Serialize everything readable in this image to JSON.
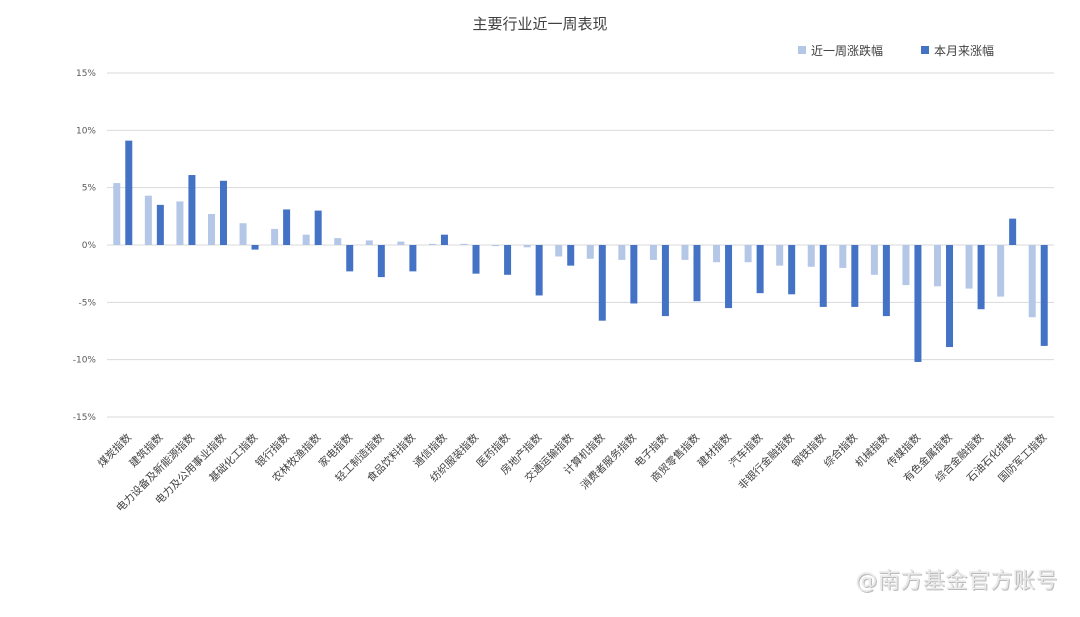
{
  "watermark": "@南方基金官方账号",
  "chart_data": {
    "type": "bar",
    "title": "主要行业近一周表现",
    "xlabel": "",
    "ylabel": "",
    "ylim": [
      -15,
      15
    ],
    "yticks": [
      15,
      10,
      5,
      0,
      -5,
      -10,
      -15
    ],
    "ytick_labels": [
      "15%",
      "10%",
      "5%",
      "0%",
      "-5%",
      "-10%",
      "-15%"
    ],
    "grid": true,
    "legend_position": "top-right",
    "categories": [
      "煤炭指数",
      "建筑指数",
      "电力设备及新能源指数",
      "电力及公用事业指数",
      "基础化工指数",
      "银行指数",
      "农林牧渔指数",
      "家电指数",
      "轻工制造指数",
      "食品饮料指数",
      "通信指数",
      "纺织服装指数",
      "医药指数",
      "房地产指数",
      "交通运输指数",
      "计算机指数",
      "消费者服务指数",
      "电子指数",
      "商贸零售指数",
      "建材指数",
      "汽车指数",
      "非银行金融指数",
      "钢铁指数",
      "综合指数",
      "机械指数",
      "传媒指数",
      "有色金属指数",
      "综合金融指数",
      "石油石化指数",
      "国防军工指数"
    ],
    "series": [
      {
        "name": "近一周涨跌幅",
        "color": "#b4c7e7",
        "values": [
          5.4,
          4.3,
          3.8,
          2.7,
          1.9,
          1.4,
          0.9,
          0.6,
          0.4,
          0.3,
          0.1,
          0.1,
          -0.1,
          -0.2,
          -1.0,
          -1.2,
          -1.3,
          -1.3,
          -1.3,
          -1.5,
          -1.5,
          -1.8,
          -1.9,
          -2.0,
          -2.6,
          -3.5,
          -3.6,
          -3.8,
          -4.5,
          -6.3
        ]
      },
      {
        "name": "本月来涨幅",
        "color": "#4472c4",
        "values": [
          9.1,
          3.5,
          6.1,
          5.6,
          -0.4,
          3.1,
          3.0,
          -2.3,
          -2.8,
          -2.3,
          0.9,
          -2.5,
          -2.6,
          -4.4,
          -1.8,
          -6.6,
          -5.1,
          -6.2,
          -4.9,
          -5.5,
          -4.2,
          -4.3,
          -5.4,
          -5.4,
          -6.2,
          -10.2,
          -8.9,
          -5.6,
          2.3,
          -8.8
        ]
      }
    ]
  }
}
